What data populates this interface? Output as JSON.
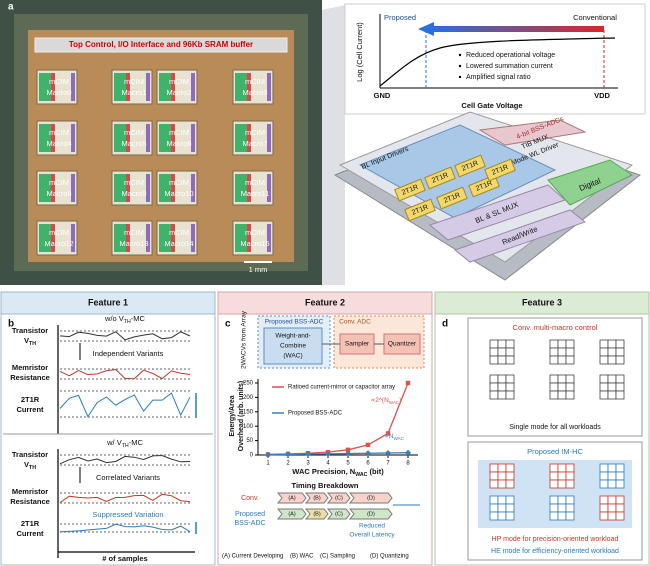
{
  "panel_a": {
    "label": "a",
    "chip_header": "Top Control, I/O Interface and 96Kb SRAM buffer",
    "macro_type": "mCIM",
    "macros": [
      "Macro0",
      "Macro1",
      "Macro2",
      "Macro3",
      "Macro4",
      "Macro5",
      "Macro6",
      "Macro7",
      "Macro8",
      "Macro9",
      "Macro10",
      "Macro11",
      "Macro12",
      "Macro13",
      "Macro14",
      "Macro15"
    ],
    "scale_bar": "1 mm"
  },
  "curve": {
    "y_label": "Log (Cell Current)",
    "x_label": "Cell Gate Voltage",
    "x_start": "GND",
    "x_end": "VDD",
    "proposed": "Proposed",
    "conventional": "Conventional",
    "bullets": [
      "Reduced operational voltage",
      "Lowered summation current",
      "Amplified signal ratio"
    ]
  },
  "stack": {
    "input_drivers": "BL Input Drivers",
    "cell": "2T1R",
    "adc": "4-bit BSS-ADCs",
    "tib_mux": "TIB MUX",
    "wl_driver": "Mode WL Driver",
    "digital": "Digital",
    "bl_sl_mux": "BL & SL MUX",
    "read_write": "Read/Write"
  },
  "feature1": {
    "label": "b",
    "title": "Feature 1",
    "without_mc": {
      "pre": "w/o V",
      "sub": "TH",
      "post": "-MC"
    },
    "with_mc": {
      "pre": "w/ V",
      "sub": "TH",
      "post": "-MC"
    },
    "transistor": {
      "line1": "Transistor",
      "line2": "V",
      "sub": "TH"
    },
    "memristor": {
      "line1": "Memristor",
      "line2": "Resistance"
    },
    "current": {
      "line1": "2T1R",
      "line2": "Current"
    },
    "independent": "Independent Variants",
    "correlated": "Correlated Variants",
    "suppressed": "Suppressed Variation",
    "x_label": "# of samples"
  },
  "feature2": {
    "label": "c",
    "title": "Feature 2",
    "side_label": "2WACVs from Array",
    "proposed_block": "Proposed BSS-ADC",
    "wac": {
      "line1": "Weight-and-",
      "line2": "Combine",
      "line3": "(WAC)"
    },
    "conv_block": "Conv. ADC",
    "sampler": "Sampler",
    "quantizer": "Quantizer",
    "timing_title": "Timing Breakdown",
    "timing_conv": "Conv.",
    "timing_proposed": {
      "line1": "Proposed",
      "line2": "BSS-ADC"
    },
    "steps": [
      "(A)",
      "(B)",
      "(C)",
      "(D)"
    ],
    "reduced": {
      "line1": "Reduced",
      "line2": "Overall Latency"
    },
    "legend": [
      "(A) Current Developing",
      "(B) WAC",
      "(C) Sampling",
      "(D) Quantizing"
    ]
  },
  "chart_data": {
    "type": "line",
    "y_label": {
      "line1": "Energy/Area",
      "line2": "Overhead (arb. units)"
    },
    "x_label": {
      "pre": "WAC Precision, N",
      "sub": "WAC",
      "post": " (bit)"
    },
    "x": [
      1,
      2,
      3,
      4,
      5,
      6,
      7,
      8
    ],
    "series": [
      {
        "name": "Ratioed current-mirror or capacitor array",
        "color": "#d9534f",
        "values": [
          2,
          4,
          6,
          10,
          18,
          35,
          75,
          250
        ]
      },
      {
        "name": "Proposed BSS-ADC",
        "color": "#3c7fb4",
        "values": [
          1,
          2,
          3,
          4,
          5,
          6,
          7,
          8
        ]
      }
    ],
    "annotations": [
      {
        "pre": "∝2^(N",
        "sub": "WAC",
        "post": ")"
      },
      {
        "pre": "∝N",
        "sub": "WAC",
        "post": ""
      }
    ],
    "xlim": [
      0.5,
      8.5
    ],
    "ylim": [
      0,
      250
    ],
    "xticks": [
      1,
      2,
      3,
      4,
      5,
      6,
      7,
      8
    ],
    "yticks": [
      0,
      50,
      100,
      150,
      200,
      250
    ]
  },
  "feature3": {
    "label": "d",
    "title": "Feature 3",
    "conv_title": "Conv. multi-macro control",
    "single_mode": "Single mode for all workloads",
    "proposed_title": "Proposed IM-HC",
    "hp_mode": "HP mode for precision-oriented workload",
    "he_mode": "HE mode for efficiency-oriented workload"
  }
}
